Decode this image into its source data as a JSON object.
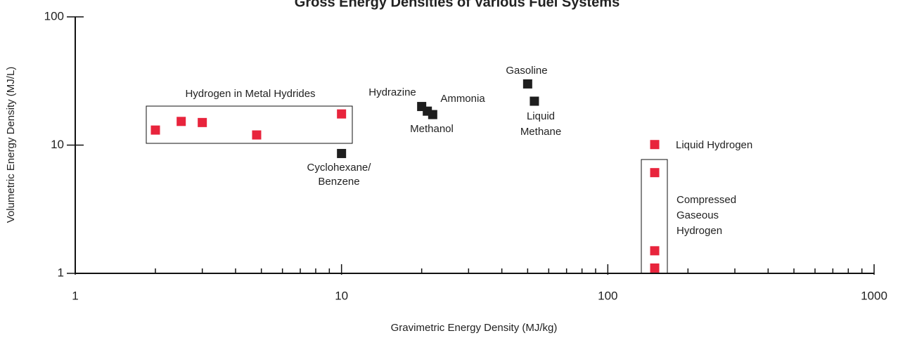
{
  "chart_data": {
    "type": "scatter",
    "title": "Gross Energy Densities of Various Fuel Systems",
    "xlabel": "Gravimetric Energy Density (MJ/kg)",
    "ylabel": "Volumetric Energy Density (MJ/L)",
    "xscale": "log",
    "yscale": "log",
    "xlim": [
      1,
      1000
    ],
    "ylim": [
      1,
      100
    ],
    "xticks": [
      1,
      10,
      100,
      1000
    ],
    "xminorticks": [
      2,
      3,
      4,
      5,
      6,
      7,
      8,
      9,
      20,
      30,
      40,
      50,
      60,
      70,
      80,
      90,
      200,
      300,
      400,
      500,
      600,
      700,
      800,
      900
    ],
    "yticks": [
      1,
      10,
      100
    ],
    "series": [
      {
        "color": "#e8243c",
        "x": [
          2,
          2.5,
          3,
          4.8,
          10,
          150,
          150,
          150,
          150
        ],
        "values": [
          13.1,
          15.3,
          15,
          12,
          17.5,
          10.1,
          6.1,
          1.5,
          1.1
        ]
      },
      {
        "color": "#1e1e1e",
        "x": [
          10,
          20,
          21,
          22,
          50,
          53
        ],
        "values": [
          8.6,
          20,
          18.4,
          17.3,
          30,
          22
        ]
      }
    ],
    "annotations": [
      "Hydrogen in Metal Hydrides",
      "Hydrazine",
      "Ammonia",
      "Methanol",
      "Gasoline",
      "Liquid",
      "Methane",
      "Cyclohexane/",
      "Benzene",
      "Liquid Hydrogen",
      "Compressed",
      "Gaseous",
      "Hydrogen"
    ]
  }
}
